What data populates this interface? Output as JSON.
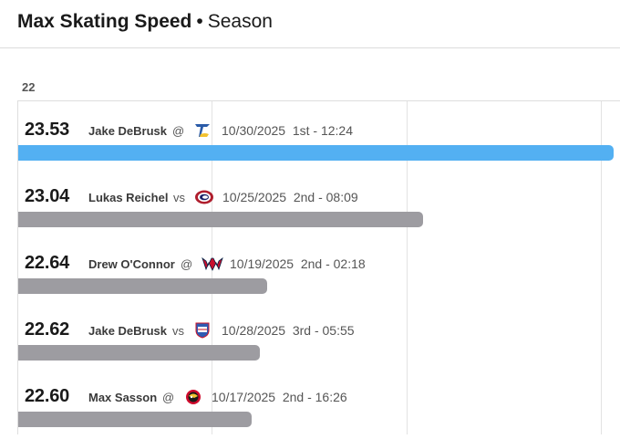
{
  "header": {
    "title_bold": "Max Skating Speed",
    "separator": "•",
    "title_rest": "Season"
  },
  "colors": {
    "highlight": "#53b0f2",
    "default": "#9d9ca1"
  },
  "chart_data": {
    "type": "bar",
    "orientation": "horizontal",
    "xlim": [
      22,
      23.53
    ],
    "xtick_labels": [
      "22"
    ],
    "grid": true,
    "rows": [
      {
        "value": "23.53",
        "player": "Jake DeBrusk",
        "home_away": "@",
        "opponent_logo": "st-louis-blues-logo",
        "date": "10/30/2025",
        "period_time": "1st - 12:24",
        "highlight": true
      },
      {
        "value": "23.04",
        "player": "Lukas Reichel",
        "home_away": "vs",
        "opponent_logo": "montreal-canadiens-logo",
        "date": "10/25/2025",
        "period_time": "2nd - 08:09",
        "highlight": false
      },
      {
        "value": "22.64",
        "player": "Drew O'Connor",
        "home_away": "@",
        "opponent_logo": "washington-capitals-logo",
        "date": "10/19/2025",
        "period_time": "2nd - 02:18",
        "highlight": false
      },
      {
        "value": "22.62",
        "player": "Jake DeBrusk",
        "home_away": "vs",
        "opponent_logo": "new-york-rangers-logo",
        "date": "10/28/2025",
        "period_time": "3rd - 05:55",
        "highlight": false
      },
      {
        "value": "22.60",
        "player": "Max Sasson",
        "home_away": "@",
        "opponent_logo": "chicago-blackhawks-logo",
        "date": "10/17/2025",
        "period_time": "2nd - 16:26",
        "highlight": false
      }
    ]
  }
}
